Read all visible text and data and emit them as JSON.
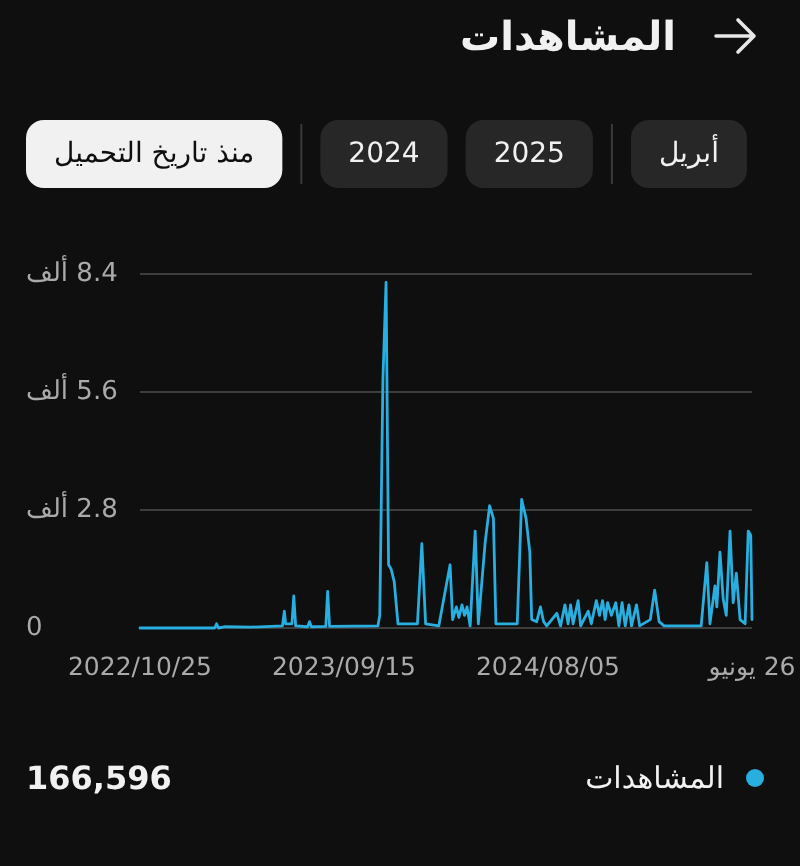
{
  "chart_data": {
    "type": "line",
    "title": "المشاهدات",
    "x": [
      "2022-10-25",
      "2023-02-21",
      "2023-02-24",
      "2023-02-27",
      "2023-03-10",
      "2023-04-20",
      "2023-06-09",
      "2023-06-12",
      "2023-06-14",
      "2023-06-24",
      "2023-06-27",
      "2023-06-30",
      "2023-07-19",
      "2023-07-22",
      "2023-07-25",
      "2023-08-17",
      "2023-08-20",
      "2023-08-23",
      "2023-11-08",
      "2023-11-11",
      "2023-11-16",
      "2023-11-21",
      "2023-11-25",
      "2023-11-29",
      "2023-12-04",
      "2023-12-10",
      "2024-01-10",
      "2024-01-17",
      "2024-01-23",
      "2024-02-13",
      "2024-03-02",
      "2024-03-06",
      "2024-03-12",
      "2024-03-16",
      "2024-03-21",
      "2024-03-25",
      "2024-03-29",
      "2024-04-03",
      "2024-04-11",
      "2024-04-16",
      "2024-04-27",
      "2024-05-04",
      "2024-05-10",
      "2024-05-14",
      "2024-06-17",
      "2024-06-24",
      "2024-07-01",
      "2024-07-07",
      "2024-07-10",
      "2024-07-18",
      "2024-07-24",
      "2024-07-29",
      "2024-08-03",
      "2024-08-19",
      "2024-08-25",
      "2024-09-01",
      "2024-09-06",
      "2024-09-10",
      "2024-09-14",
      "2024-09-22",
      "2024-09-26",
      "2024-10-08",
      "2024-10-13",
      "2024-10-21",
      "2024-10-26",
      "2024-10-31",
      "2024-11-04",
      "2024-11-08",
      "2024-11-14",
      "2024-11-21",
      "2024-11-26",
      "2024-12-01",
      "2024-12-06",
      "2024-12-12",
      "2024-12-16",
      "2024-12-24",
      "2024-12-29",
      "2025-01-15",
      "2025-01-22",
      "2025-01-29",
      "2025-02-06",
      "2025-04-06",
      "2025-04-15",
      "2025-04-20",
      "2025-04-28",
      "2025-05-01",
      "2025-05-06",
      "2025-05-11",
      "2025-05-16",
      "2025-05-22",
      "2025-05-27",
      "2025-06-01",
      "2025-06-07",
      "2025-06-15",
      "2025-06-20",
      "2025-06-24",
      "2025-06-26"
    ],
    "series": [
      {
        "name": "المشاهدات",
        "color": "#29aee0",
        "values": [
          0,
          0,
          0.1,
          0,
          0.03,
          0.02,
          0.05,
          0.4,
          0.1,
          0.1,
          0.76,
          0.05,
          0.03,
          0.15,
          0.03,
          0.04,
          0.87,
          0.04,
          0.05,
          0.3,
          5.9,
          8.2,
          1.5,
          1.4,
          1.1,
          0.1,
          0.1,
          2.0,
          0.1,
          0.05,
          1.5,
          0.2,
          0.5,
          0.25,
          0.55,
          0.3,
          0.5,
          0.05,
          2.3,
          0.1,
          2.05,
          2.9,
          2.6,
          0.1,
          0.1,
          3.05,
          2.6,
          1.8,
          0.2,
          0.15,
          0.5,
          0.15,
          0.05,
          0.35,
          0.05,
          0.55,
          0.1,
          0.55,
          0.1,
          0.65,
          0.05,
          0.4,
          0.1,
          0.65,
          0.3,
          0.65,
          0.2,
          0.6,
          0.3,
          0.6,
          0.05,
          0.6,
          0.05,
          0.55,
          0.05,
          0.55,
          0.05,
          0.2,
          0.9,
          0.15,
          0.05,
          0.05,
          1.55,
          0.1,
          1.0,
          0.5,
          1.8,
          0.7,
          0.3,
          2.3,
          0.6,
          1.3,
          0.2,
          0.1,
          2.3,
          2.2,
          0.2
        ]
      }
    ],
    "xlim": [
      "2022-10-25",
      "2025-06-26"
    ],
    "xticks": [
      {
        "value": "2022-10-25",
        "label": "2022/10/25"
      },
      {
        "value": "2023-09-15",
        "label": "2023/09/15"
      },
      {
        "value": "2024-08-05",
        "label": "2024/08/05"
      },
      {
        "value": "2025-06-26",
        "label": "26 يونيو"
      }
    ],
    "ylim": [
      0,
      8.4
    ],
    "yticks": [
      0,
      {
        "value": 2.8,
        "label": "2.8 ألف"
      },
      {
        "value": 5.6,
        "label": "5.6 ألف"
      },
      {
        "value": 8.4,
        "label": "8.4 ألف"
      }
    ],
    "grid": "y",
    "legend": "bottom",
    "annotations": [
      "منذ تاريخ التحميل",
      "2024",
      "2025",
      "أبريل",
      "166,596"
    ]
  }
}
